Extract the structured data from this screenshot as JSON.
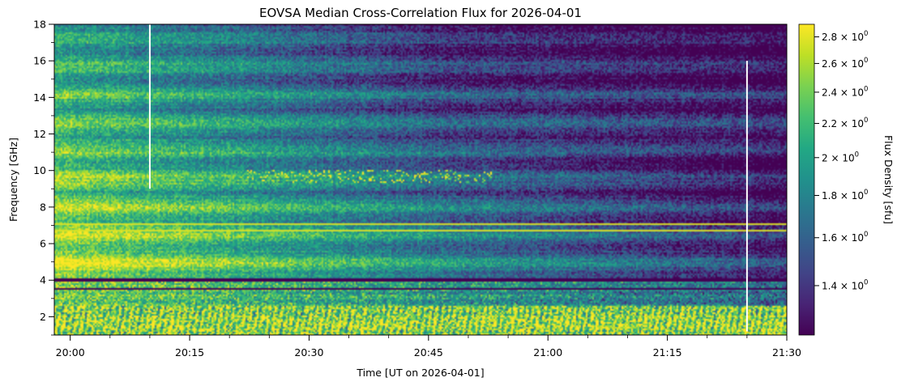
{
  "chart_data": {
    "type": "heatmap",
    "title": "EOVSA Median Cross-Correlation Flux for 2026-04-01",
    "xlabel": "Time [UT on 2026-04-01]",
    "ylabel": "Frequency [GHz]",
    "colorbar_label": "Flux Density [sfu]",
    "colormap": "viridis",
    "colorbar_scale": "log",
    "xlim": [
      "19:58",
      "21:30"
    ],
    "ylim": [
      1.0,
      18.0
    ],
    "x_ticks": [
      "20:00",
      "20:15",
      "20:30",
      "20:45",
      "21:00",
      "21:15",
      "21:30"
    ],
    "y_ticks": [
      2,
      4,
      6,
      8,
      10,
      12,
      14,
      16,
      18
    ],
    "colorbar_range": [
      1.22,
      2.9
    ],
    "colorbar_ticks": [
      {
        "value": 1.4,
        "mantissa": "1.4",
        "exp": "0"
      },
      {
        "value": 1.6,
        "mantissa": "1.6",
        "exp": "0"
      },
      {
        "value": 1.8,
        "mantissa": "1.8",
        "exp": "0"
      },
      {
        "value": 2.0,
        "mantissa": "2",
        "exp": "0"
      },
      {
        "value": 2.2,
        "mantissa": "2.2",
        "exp": "0"
      },
      {
        "value": 2.4,
        "mantissa": "2.4",
        "exp": "0"
      },
      {
        "value": 2.6,
        "mantissa": "2.6",
        "exp": "0"
      },
      {
        "value": 2.8,
        "mantissa": "2.8",
        "exp": "0"
      }
    ],
    "data_gaps": [
      {
        "time": "20:10",
        "freq_range": [
          9.0,
          18.0
        ]
      },
      {
        "time": "21:25",
        "freq_range": [
          1.2,
          16.0
        ]
      }
    ],
    "bright_patches": {
      "freq_range": [
        9.3,
        10.0
      ],
      "time_range": [
        "20:22",
        "20:53"
      ]
    },
    "colors": {
      "min": "#440154",
      "max": "#fde725",
      "gap": "#ffffff"
    }
  }
}
